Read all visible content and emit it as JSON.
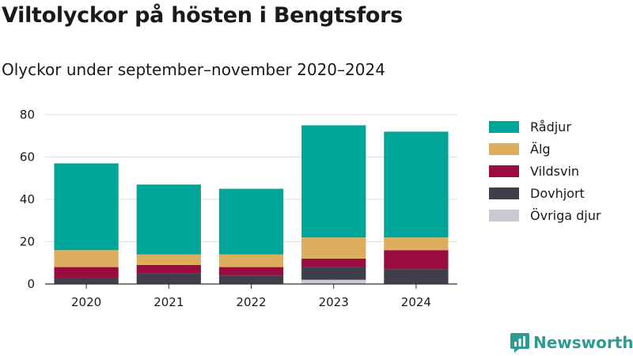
{
  "title": "Viltolyckor på hösten i Bengtsfors",
  "subtitle": "Olyckor under september–november 2020–2024",
  "brand": {
    "name": "Newsworthy",
    "icon": "newsworthy-logo-icon",
    "color": "#2f9a93"
  },
  "chart_data": {
    "type": "bar",
    "stacked": true,
    "title": "Viltolyckor på hösten i Bengtsfors",
    "subtitle": "Olyckor under september–november 2020–2024",
    "xlabel": "",
    "ylabel": "",
    "ylim": [
      0,
      80
    ],
    "yticks": [
      0,
      20,
      40,
      60,
      80
    ],
    "grid": true,
    "legend_position": "right",
    "categories": [
      "2020",
      "2021",
      "2022",
      "2023",
      "2024"
    ],
    "series": [
      {
        "name": "Övriga djur",
        "color": "#cbc9d6",
        "values": [
          0,
          0,
          0,
          2,
          0
        ]
      },
      {
        "name": "Dovhjort",
        "color": "#3f3e4d",
        "values": [
          3,
          5,
          4,
          6,
          7
        ]
      },
      {
        "name": "Vildsvin",
        "color": "#9a0b3f",
        "values": [
          5,
          4,
          4,
          4,
          9
        ]
      },
      {
        "name": "Älg",
        "color": "#dcad5c",
        "values": [
          8,
          5,
          6,
          10,
          6
        ]
      },
      {
        "name": "Rådjur",
        "color": "#00a59a",
        "values": [
          41,
          33,
          31,
          53,
          50
        ]
      }
    ],
    "legend_order": [
      "Rådjur",
      "Älg",
      "Vildsvin",
      "Dovhjort",
      "Övriga djur"
    ]
  }
}
